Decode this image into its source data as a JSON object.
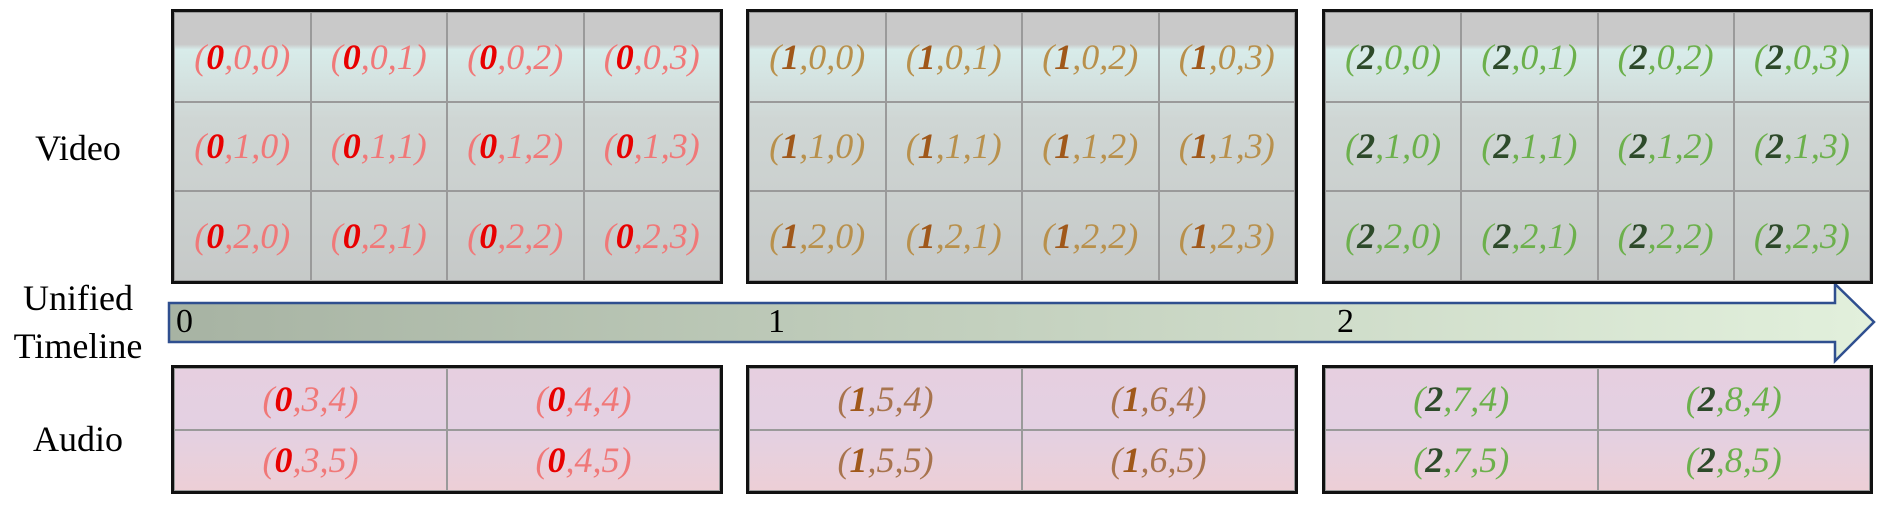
{
  "labels": {
    "video": "Video",
    "timeline": "Unified Timeline",
    "audio": "Audio"
  },
  "timeline_ticks": [
    "0",
    "1",
    "2"
  ],
  "video_blocks": [
    {
      "rows": [
        [
          "(0,0,0)",
          "(0,0,1)",
          "(0,0,2)",
          "(0,0,3)"
        ],
        [
          "(0,1,0)",
          "(0,1,1)",
          "(0,1,2)",
          "(0,1,3)"
        ],
        [
          "(0,2,0)",
          "(0,2,1)",
          "(0,2,2)",
          "(0,2,3)"
        ]
      ]
    },
    {
      "rows": [
        [
          "(1,0,0)",
          "(1,0,1)",
          "(1,0,2)",
          "(1,0,3)"
        ],
        [
          "(1,1,0)",
          "(1,1,1)",
          "(1,1,2)",
          "(1,1,3)"
        ],
        [
          "(1,2,0)",
          "(1,2,1)",
          "(1,2,2)",
          "(1,2,3)"
        ]
      ]
    },
    {
      "rows": [
        [
          "(2,0,0)",
          "(2,0,1)",
          "(2,0,2)",
          "(2,0,3)"
        ],
        [
          "(2,1,0)",
          "(2,1,1)",
          "(2,1,2)",
          "(2,1,3)"
        ],
        [
          "(2,2,0)",
          "(2,2,1)",
          "(2,2,2)",
          "(2,2,3)"
        ]
      ]
    }
  ],
  "audio_blocks": [
    {
      "rows": [
        [
          "(0,3,4)",
          "(0,4,4)"
        ],
        [
          "(0,3,5)",
          "(0,4,5)"
        ]
      ]
    },
    {
      "rows": [
        [
          "(1,5,4)",
          "(1,6,4)"
        ],
        [
          "(1,5,5)",
          "(1,6,5)"
        ]
      ]
    },
    {
      "rows": [
        [
          "(2,7,4)",
          "(2,8,4)"
        ],
        [
          "(2,7,5)",
          "(2,8,5)"
        ]
      ]
    }
  ]
}
